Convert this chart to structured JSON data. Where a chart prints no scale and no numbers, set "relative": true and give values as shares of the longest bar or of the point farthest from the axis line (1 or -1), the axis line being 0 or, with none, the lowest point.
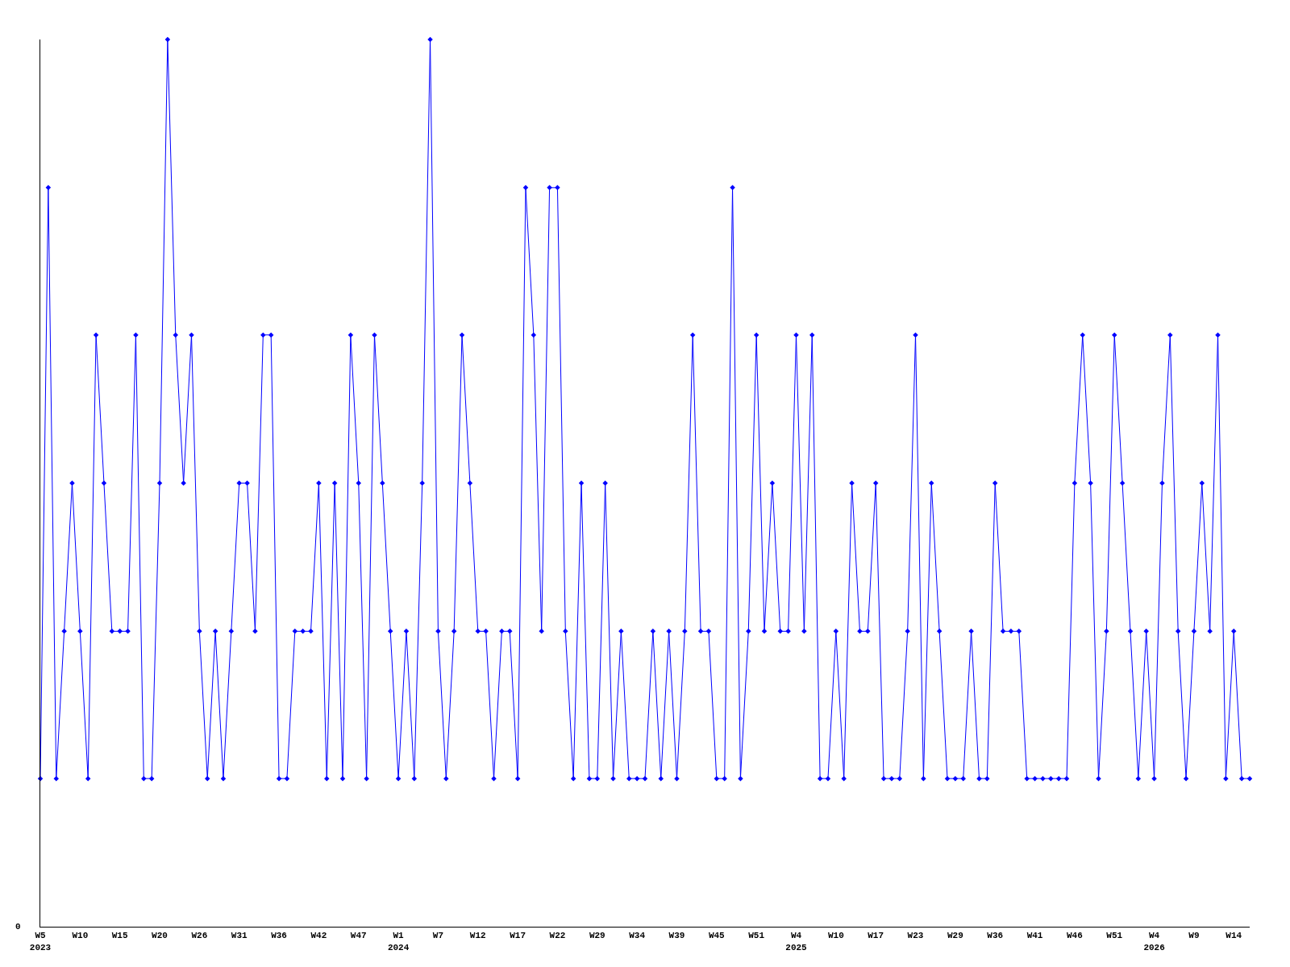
{
  "chart_data": {
    "type": "line",
    "relative": true,
    "marker": "diamond",
    "line_style": "solid",
    "annotations": [
      "0"
    ],
    "categories": [
      "W5\n2023",
      null,
      null,
      null,
      null,
      "W10",
      null,
      null,
      null,
      null,
      "W15",
      null,
      null,
      null,
      null,
      "W20",
      null,
      null,
      null,
      null,
      "W26",
      null,
      null,
      null,
      null,
      "W31",
      null,
      null,
      null,
      null,
      "W36",
      null,
      null,
      null,
      null,
      "W42",
      null,
      null,
      null,
      null,
      "W47",
      null,
      null,
      null,
      null,
      "W1\n2024",
      null,
      null,
      null,
      null,
      "W7",
      null,
      null,
      null,
      null,
      "W12",
      null,
      null,
      null,
      null,
      "W17",
      null,
      null,
      null,
      null,
      "W22",
      null,
      null,
      null,
      null,
      "W29",
      null,
      null,
      null,
      null,
      "W34",
      null,
      null,
      null,
      null,
      "W39",
      null,
      null,
      null,
      null,
      "W45",
      null,
      null,
      null,
      null,
      "W51",
      null,
      null,
      null,
      null,
      "W4\n2025",
      null,
      null,
      null,
      null,
      "W10",
      null,
      null,
      null,
      null,
      "W17",
      null,
      null,
      null,
      null,
      "W23",
      null,
      null,
      null,
      null,
      "W29",
      null,
      null,
      null,
      null,
      "W36",
      null,
      null,
      null,
      null,
      "W41",
      null,
      null,
      null,
      null,
      "W46",
      null,
      null,
      null,
      null,
      "W51",
      null,
      null,
      null,
      null,
      "W4\n2026",
      null,
      null,
      null,
      null,
      "W9",
      null,
      null,
      null,
      null,
      "W14",
      null,
      null
    ],
    "series": [
      {
        "color": "#0000ff",
        "values": [
          0.167,
          0.833,
          0.167,
          0.333,
          0.5,
          0.333,
          0.167,
          0.667,
          0.5,
          0.333,
          0.333,
          0.333,
          0.667,
          0.167,
          0.167,
          0.5,
          1,
          0.667,
          0.5,
          0.667,
          0.333,
          0.167,
          0.333,
          0.167,
          0.333,
          0.5,
          0.5,
          0.333,
          0.667,
          0.667,
          0.167,
          0.167,
          0.333,
          0.333,
          0.333,
          0.5,
          0.167,
          0.5,
          0.167,
          0.667,
          0.5,
          0.167,
          0.667,
          0.5,
          0.333,
          0.167,
          0.333,
          0.167,
          0.5,
          1,
          0.333,
          0.167,
          0.333,
          0.667,
          0.5,
          0.333,
          0.333,
          0.167,
          0.333,
          0.333,
          0.167,
          0.833,
          0.667,
          0.333,
          0.833,
          0.833,
          0.333,
          0.167,
          0.5,
          0.167,
          0.167,
          0.5,
          0.167,
          0.333,
          0.167,
          0.167,
          0.167,
          0.333,
          0.167,
          0.333,
          0.167,
          0.333,
          0.667,
          0.333,
          0.333,
          0.167,
          0.167,
          0.833,
          0.167,
          0.333,
          0.667,
          0.333,
          0.5,
          0.333,
          0.333,
          0.667,
          0.333,
          0.667,
          0.167,
          0.167,
          0.333,
          0.167,
          0.5,
          0.333,
          0.333,
          0.5,
          0.167,
          0.167,
          0.167,
          0.333,
          0.667,
          0.167,
          0.5,
          0.333,
          0.167,
          0.167,
          0.167,
          0.333,
          0.167,
          0.167,
          0.5,
          0.333,
          0.333,
          0.333,
          0.167,
          0.167,
          0.167,
          0.167,
          0.167,
          0.167,
          0.5,
          0.667,
          0.5,
          0.167,
          0.333,
          0.667,
          0.5,
          0.333,
          0.167,
          0.333,
          0.167,
          0.5,
          0.667,
          0.333,
          0.167,
          0.333,
          0.5,
          0.333,
          0.667,
          0.167,
          0.333,
          0.167,
          0.167
        ]
      }
    ]
  }
}
